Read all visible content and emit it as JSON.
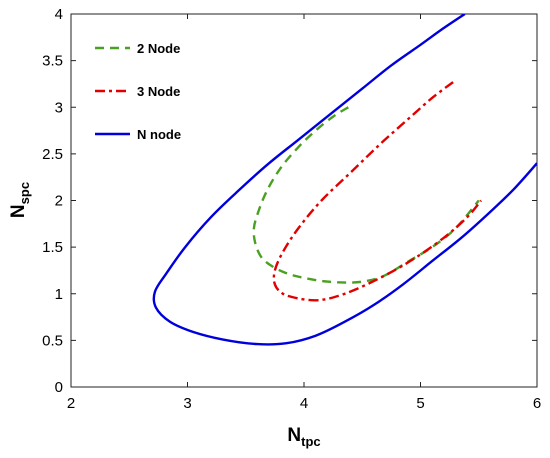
{
  "chart_data": {
    "type": "line",
    "xlabel": {
      "main": "N",
      "sub": "tpc"
    },
    "ylabel": {
      "main": "N",
      "sub": "spc"
    },
    "xlim": [
      2,
      6
    ],
    "ylim": [
      0,
      4
    ],
    "xticks": [
      2,
      3,
      4,
      5,
      6
    ],
    "yticks": [
      0,
      0.5,
      1,
      1.5,
      2,
      2.5,
      3,
      3.5,
      4
    ],
    "xtick_labels": [
      "2",
      "3",
      "4",
      "5",
      "6"
    ],
    "ytick_labels": [
      "0",
      "0.5",
      "1",
      "1.5",
      "2",
      "2.5",
      "3",
      "3.5",
      "4"
    ],
    "grid": false,
    "legend_position": "top-left",
    "series": [
      {
        "name": "2 Node",
        "color": "#4aa020",
        "style": "dashed",
        "points": [
          [
            4.38,
            3.0
          ],
          [
            4.25,
            2.9
          ],
          [
            4.1,
            2.75
          ],
          [
            3.95,
            2.57
          ],
          [
            3.8,
            2.35
          ],
          [
            3.68,
            2.1
          ],
          [
            3.6,
            1.85
          ],
          [
            3.57,
            1.7
          ],
          [
            3.58,
            1.55
          ],
          [
            3.63,
            1.4
          ],
          [
            3.72,
            1.3
          ],
          [
            3.85,
            1.22
          ],
          [
            4.0,
            1.17
          ],
          [
            4.2,
            1.13
          ],
          [
            4.4,
            1.12
          ],
          [
            4.55,
            1.14
          ],
          [
            4.7,
            1.2
          ],
          [
            4.9,
            1.35
          ],
          [
            5.1,
            1.5
          ],
          [
            5.3,
            1.7
          ],
          [
            5.5,
            2.0
          ]
        ]
      },
      {
        "name": "3 Node",
        "color": "#e00000",
        "style": "dashdot",
        "points": [
          [
            5.28,
            3.27
          ],
          [
            5.1,
            3.1
          ],
          [
            4.9,
            2.88
          ],
          [
            4.65,
            2.6
          ],
          [
            4.4,
            2.3
          ],
          [
            4.15,
            2.0
          ],
          [
            3.95,
            1.7
          ],
          [
            3.82,
            1.45
          ],
          [
            3.75,
            1.25
          ],
          [
            3.75,
            1.1
          ],
          [
            3.82,
            1.0
          ],
          [
            3.95,
            0.95
          ],
          [
            4.1,
            0.93
          ],
          [
            4.25,
            0.96
          ],
          [
            4.45,
            1.05
          ],
          [
            4.7,
            1.2
          ],
          [
            4.95,
            1.38
          ],
          [
            5.2,
            1.6
          ],
          [
            5.4,
            1.82
          ],
          [
            5.52,
            2.0
          ]
        ]
      },
      {
        "name": "N node",
        "color": "#0000dd",
        "style": "solid",
        "points": [
          [
            5.38,
            4.0
          ],
          [
            5.2,
            3.85
          ],
          [
            5.0,
            3.67
          ],
          [
            4.75,
            3.45
          ],
          [
            4.5,
            3.2
          ],
          [
            4.2,
            2.9
          ],
          [
            3.95,
            2.65
          ],
          [
            3.7,
            2.4
          ],
          [
            3.45,
            2.12
          ],
          [
            3.2,
            1.82
          ],
          [
            2.98,
            1.5
          ],
          [
            2.82,
            1.22
          ],
          [
            2.72,
            1.02
          ],
          [
            2.73,
            0.85
          ],
          [
            2.85,
            0.7
          ],
          [
            3.05,
            0.59
          ],
          [
            3.3,
            0.51
          ],
          [
            3.6,
            0.46
          ],
          [
            3.85,
            0.47
          ],
          [
            4.1,
            0.55
          ],
          [
            4.35,
            0.7
          ],
          [
            4.6,
            0.88
          ],
          [
            4.85,
            1.1
          ],
          [
            5.1,
            1.35
          ],
          [
            5.35,
            1.6
          ],
          [
            5.6,
            1.88
          ],
          [
            5.8,
            2.12
          ],
          [
            6.0,
            2.4
          ]
        ]
      }
    ]
  }
}
